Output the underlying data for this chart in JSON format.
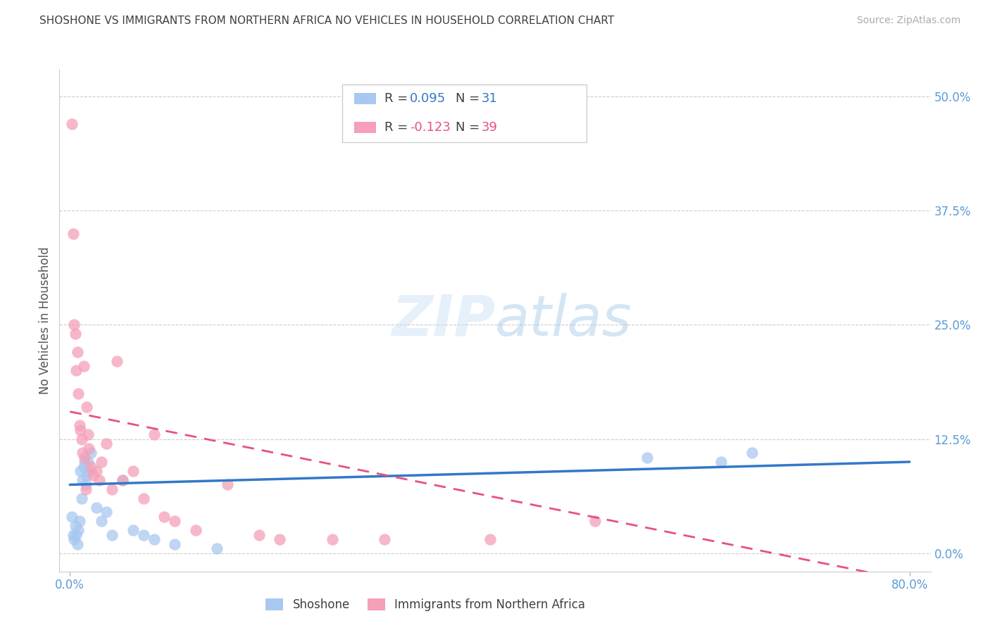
{
  "title": "SHOSHONE VS IMMIGRANTS FROM NORTHERN AFRICA NO VEHICLES IN HOUSEHOLD CORRELATION CHART",
  "source": "Source: ZipAtlas.com",
  "ylabel": "No Vehicles in Household",
  "y_tick_labels": [
    "0.0%",
    "12.5%",
    "25.0%",
    "37.5%",
    "50.0%"
  ],
  "y_tick_values": [
    0.0,
    12.5,
    25.0,
    37.5,
    50.0
  ],
  "xlim": [
    -1.0,
    82.0
  ],
  "ylim": [
    -2.0,
    53.0
  ],
  "legend_labels": [
    "Shoshone",
    "Immigrants from Northern Africa"
  ],
  "R_blue": 0.095,
  "N_blue": 31,
  "R_pink": -0.123,
  "N_pink": 39,
  "blue_color": "#a8c8f0",
  "pink_color": "#f4a0b8",
  "blue_line_color": "#3378c8",
  "pink_line_color": "#e85080",
  "title_color": "#404040",
  "axis_label_color": "#5a9bd5",
  "watermark": "ZIPatlas",
  "blue_scatter_x": [
    0.2,
    0.3,
    0.4,
    0.5,
    0.6,
    0.7,
    0.8,
    0.9,
    1.0,
    1.1,
    1.2,
    1.3,
    1.4,
    1.5,
    1.6,
    1.7,
    1.8,
    2.0,
    2.5,
    3.0,
    3.5,
    4.0,
    5.0,
    6.0,
    7.0,
    8.0,
    10.0,
    14.0,
    55.0,
    62.0,
    65.0
  ],
  "blue_scatter_y": [
    4.0,
    2.0,
    1.5,
    3.0,
    2.0,
    1.0,
    2.5,
    3.5,
    9.0,
    6.0,
    8.0,
    9.5,
    10.0,
    7.5,
    8.5,
    10.0,
    9.0,
    11.0,
    5.0,
    3.5,
    4.5,
    2.0,
    8.0,
    2.5,
    2.0,
    1.5,
    1.0,
    0.5,
    10.5,
    10.0,
    11.0
  ],
  "pink_scatter_x": [
    0.2,
    0.3,
    0.4,
    0.5,
    0.6,
    0.7,
    0.8,
    0.9,
    1.0,
    1.1,
    1.2,
    1.3,
    1.4,
    1.5,
    1.6,
    1.7,
    1.8,
    2.0,
    2.2,
    2.5,
    2.8,
    3.0,
    3.5,
    4.0,
    4.5,
    5.0,
    6.0,
    7.0,
    8.0,
    9.0,
    10.0,
    12.0,
    15.0,
    18.0,
    20.0,
    25.0,
    30.0,
    40.0,
    50.0
  ],
  "pink_scatter_y": [
    47.0,
    35.0,
    25.0,
    24.0,
    20.0,
    22.0,
    17.5,
    14.0,
    13.5,
    12.5,
    11.0,
    20.5,
    10.5,
    7.0,
    16.0,
    13.0,
    11.5,
    9.5,
    8.5,
    9.0,
    8.0,
    10.0,
    12.0,
    7.0,
    21.0,
    8.0,
    9.0,
    6.0,
    13.0,
    4.0,
    3.5,
    2.5,
    7.5,
    2.0,
    1.5,
    1.5,
    1.5,
    1.5,
    3.5
  ],
  "blue_line_x0": 0.0,
  "blue_line_x1": 80.0,
  "blue_line_y0": 7.5,
  "blue_line_y1": 10.0,
  "pink_line_x0": 0.0,
  "pink_line_x1": 80.0,
  "pink_line_y0": 15.5,
  "pink_line_y1": -3.0
}
